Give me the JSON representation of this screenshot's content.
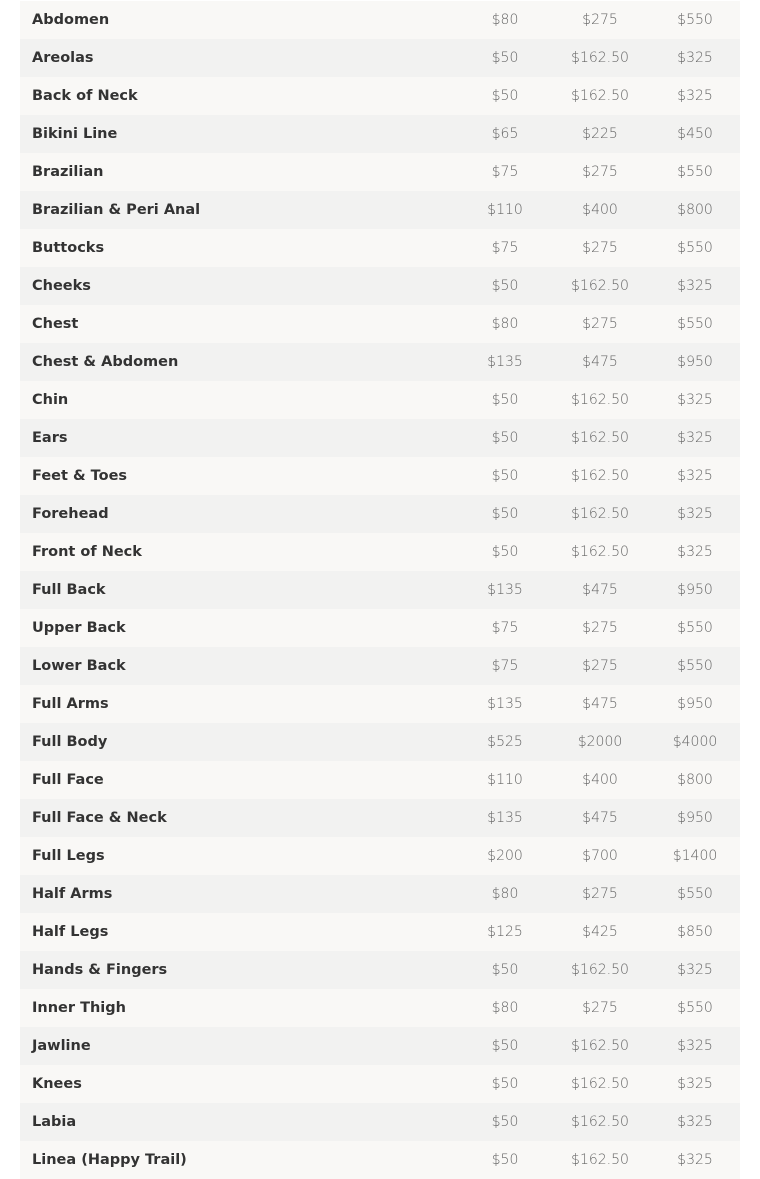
{
  "table": {
    "rows": [
      [
        "Abdomen",
        "$80",
        "$275",
        "$550"
      ],
      [
        "Areolas",
        "$50",
        "$162.50",
        "$325"
      ],
      [
        "Back of Neck",
        "$50",
        "$162.50",
        "$325"
      ],
      [
        "Bikini Line",
        "$65",
        "$225",
        "$450"
      ],
      [
        "Brazilian",
        "$75",
        "$275",
        "$550"
      ],
      [
        "Brazilian & Peri Anal",
        "$110",
        "$400",
        "$800"
      ],
      [
        "Buttocks",
        "$75",
        "$275",
        "$550"
      ],
      [
        "Cheeks",
        "$50",
        "$162.50",
        "$325"
      ],
      [
        "Chest",
        "$80",
        "$275",
        "$550"
      ],
      [
        "Chest & Abdomen",
        "$135",
        "$475",
        "$950"
      ],
      [
        "Chin",
        "$50",
        "$162.50",
        "$325"
      ],
      [
        "Ears",
        "$50",
        "$162.50",
        "$325"
      ],
      [
        "Feet & Toes",
        "$50",
        "$162.50",
        "$325"
      ],
      [
        "Forehead",
        "$50",
        "$162.50",
        "$325"
      ],
      [
        "Front of Neck",
        "$50",
        "$162.50",
        "$325"
      ],
      [
        "Full Back",
        "$135",
        "$475",
        "$950"
      ],
      [
        "Upper Back",
        "$75",
        "$275",
        "$550"
      ],
      [
        "Lower Back",
        "$75",
        "$275",
        "$550"
      ],
      [
        "Full Arms",
        "$135",
        "$475",
        "$950"
      ],
      [
        "Full Body",
        "$525",
        "$2000",
        "$4000"
      ],
      [
        "Full Face",
        "$110",
        "$400",
        "$800"
      ],
      [
        "Full Face & Neck",
        "$135",
        "$475",
        "$950"
      ],
      [
        "Full Legs",
        "$200",
        "$700",
        "$1400"
      ],
      [
        "Half Arms",
        "$80",
        "$275",
        "$550"
      ],
      [
        "Half Legs",
        "$125",
        "$425",
        "$850"
      ],
      [
        "Hands & Fingers",
        "$50",
        "$162.50",
        "$325"
      ],
      [
        "Inner Thigh",
        "$80",
        "$275",
        "$550"
      ],
      [
        "Jawline",
        "$50",
        "$162.50",
        "$325"
      ],
      [
        "Knees",
        "$50",
        "$162.50",
        "$325"
      ],
      [
        "Labia",
        "$50",
        "$162.50",
        "$325"
      ],
      [
        "Linea (Happy Trail)",
        "$50",
        "$162.50",
        "$325"
      ]
    ]
  }
}
